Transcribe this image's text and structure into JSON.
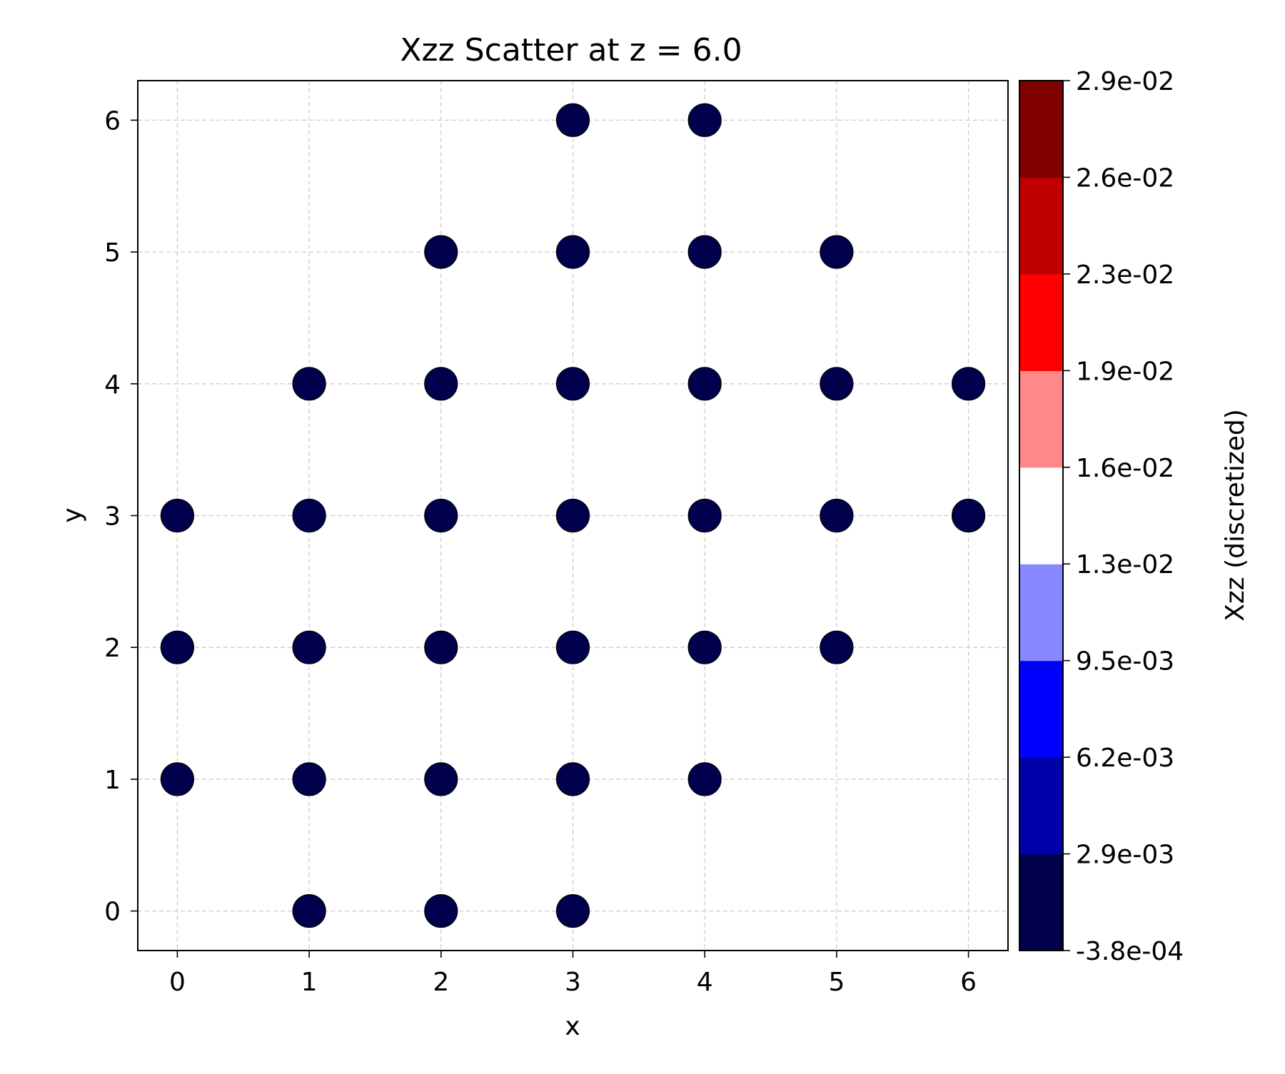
{
  "chart_data": {
    "type": "scatter",
    "title": "Xzz Scatter at z = 6.0",
    "xlabel": "x",
    "ylabel": "y",
    "xlim": [
      -0.3,
      6.3
    ],
    "ylim": [
      -0.3,
      6.3
    ],
    "xticks": [
      "0",
      "1",
      "2",
      "3",
      "4",
      "5",
      "6"
    ],
    "yticks": [
      "0",
      "1",
      "2",
      "3",
      "4",
      "5",
      "6"
    ],
    "grid": true,
    "marker_color": "#00004c",
    "points": [
      {
        "x": 3,
        "y": 6
      },
      {
        "x": 4,
        "y": 6
      },
      {
        "x": 2,
        "y": 5
      },
      {
        "x": 3,
        "y": 5
      },
      {
        "x": 4,
        "y": 5
      },
      {
        "x": 5,
        "y": 5
      },
      {
        "x": 1,
        "y": 4
      },
      {
        "x": 2,
        "y": 4
      },
      {
        "x": 3,
        "y": 4
      },
      {
        "x": 4,
        "y": 4
      },
      {
        "x": 5,
        "y": 4
      },
      {
        "x": 6,
        "y": 4
      },
      {
        "x": 0,
        "y": 3
      },
      {
        "x": 1,
        "y": 3
      },
      {
        "x": 2,
        "y": 3
      },
      {
        "x": 3,
        "y": 3
      },
      {
        "x": 4,
        "y": 3
      },
      {
        "x": 5,
        "y": 3
      },
      {
        "x": 6,
        "y": 3
      },
      {
        "x": 0,
        "y": 2
      },
      {
        "x": 1,
        "y": 2
      },
      {
        "x": 2,
        "y": 2
      },
      {
        "x": 3,
        "y": 2
      },
      {
        "x": 4,
        "y": 2
      },
      {
        "x": 5,
        "y": 2
      },
      {
        "x": 0,
        "y": 1
      },
      {
        "x": 1,
        "y": 1
      },
      {
        "x": 2,
        "y": 1
      },
      {
        "x": 3,
        "y": 1
      },
      {
        "x": 4,
        "y": 1
      },
      {
        "x": 1,
        "y": 0
      },
      {
        "x": 2,
        "y": 0
      },
      {
        "x": 3,
        "y": 0
      }
    ],
    "colorbar": {
      "label": "Xzz (discretized)",
      "tick_labels": [
        "-3.8e-04",
        "2.9e-03",
        "6.2e-03",
        "9.5e-03",
        "1.3e-02",
        "1.6e-02",
        "1.9e-02",
        "2.3e-02",
        "2.6e-02",
        "2.9e-02"
      ],
      "colors": [
        "#00004c",
        "#0000a8",
        "#0000ff",
        "#8888ff",
        "#ffffff",
        "#ff8888",
        "#ff0000",
        "#c00000",
        "#800000"
      ]
    }
  }
}
